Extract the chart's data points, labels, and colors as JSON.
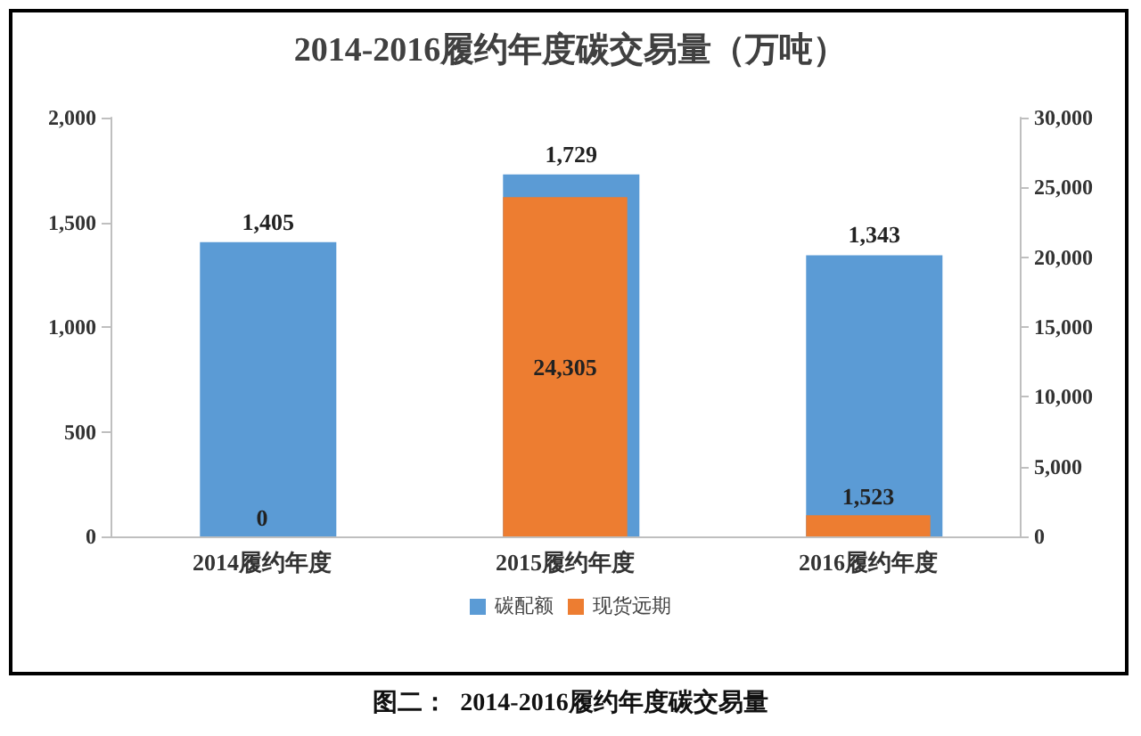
{
  "chart_data": {
    "type": "bar",
    "title": "2014-2016履约年度碳交易量（万吨）",
    "categories": [
      "2014履约年度",
      "2015履约年度",
      "2016履约年度"
    ],
    "series": [
      {
        "name": "碳配额",
        "color": "#5b9bd5",
        "values": [
          1405,
          1729,
          1343
        ],
        "value_labels": [
          "1,405",
          "1,729",
          "1,343"
        ]
      },
      {
        "name": "现货远期",
        "color": "#ed7d31",
        "axis": "y2",
        "values": [
          0,
          24305,
          1523
        ],
        "value_labels": [
          "0",
          "24,305",
          "1,523"
        ]
      }
    ],
    "ylim": [
      0,
      2000
    ],
    "yticks": [
      0,
      {
        "value": 500,
        "label": "500"
      },
      {
        "value": 1000,
        "label": "1,000"
      },
      {
        "value": 1500,
        "label": "1,500"
      },
      {
        "value": 2000,
        "label": "2,000"
      }
    ],
    "y2lim": [
      0,
      30000
    ],
    "y2ticks": [
      0,
      {
        "value": 5000,
        "label": "5,000"
      },
      {
        "value": 10000,
        "label": "10,000"
      },
      {
        "value": 15000,
        "label": "15,000"
      },
      {
        "value": 20000,
        "label": "20,000"
      },
      {
        "value": 25000,
        "label": "25,000"
      },
      {
        "value": 30000,
        "label": "30,000"
      }
    ],
    "grid": false,
    "legend": "bottom",
    "annotations": [
      "图二：  2014-2016履约年度碳交易量"
    ]
  }
}
